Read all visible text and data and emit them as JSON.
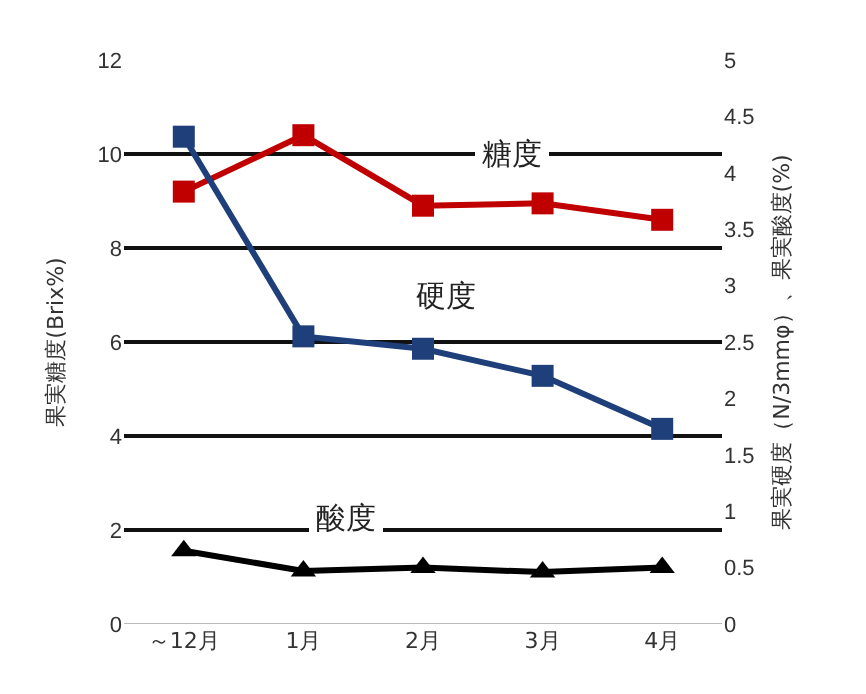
{
  "chart_data": {
    "type": "line",
    "ylabel": "果実糖度(Brix%)",
    "y2label": "果実硬度（N/3mmφ）、果実酸度(%)",
    "categories": [
      "～12月",
      "1月",
      "2月",
      "3月",
      "4月"
    ],
    "series": [
      {
        "name": "糖度",
        "color": "#c00000",
        "values": [
          9.2,
          10.4,
          8.9,
          8.95,
          8.6
        ],
        "marker": "square"
      },
      {
        "name": "硬度",
        "color": "#1f3f7a",
        "values": [
          4.32,
          2.55,
          2.44,
          2.2,
          1.73
        ],
        "axis": "y2",
        "marker": "square"
      },
      {
        "name": "酸度",
        "color": "#000000",
        "values": [
          0.65,
          0.47,
          0.5,
          0.46,
          0.5
        ],
        "axis": "y2",
        "marker": "triangle"
      }
    ],
    "ylim": [
      0,
      12
    ],
    "yticks": [
      0,
      2,
      4,
      6,
      8,
      10,
      12
    ],
    "y2lim": [
      0,
      5
    ],
    "y2ticks": [
      0,
      0.5,
      1,
      1.5,
      2,
      2.5,
      3,
      3.5,
      4,
      4.5,
      5
    ],
    "grid": "y",
    "legend": false,
    "line_style": "solid"
  }
}
